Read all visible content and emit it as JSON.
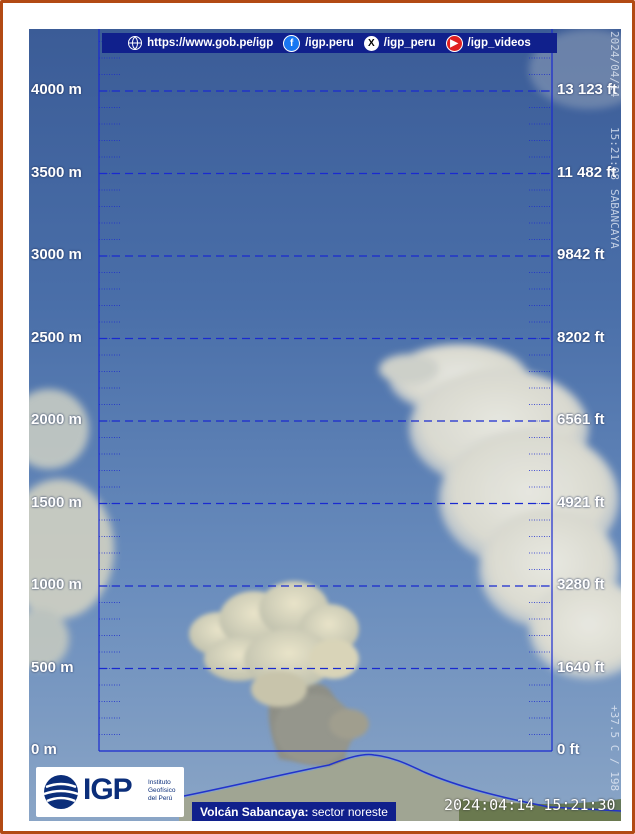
{
  "banner": {
    "website": "https://www.gob.pe/igp",
    "facebook": "/igp.peru",
    "x_handle": "/igp_peru",
    "youtube": "/igp_videos"
  },
  "scale": {
    "meters": [
      "0 m",
      "500 m",
      "1000 m",
      "1500 m",
      "2000 m",
      "2500 m",
      "3000 m",
      "3500 m",
      "4000 m"
    ],
    "feet": [
      "0 ft",
      "1640 ft",
      "3280 ft",
      "4921 ft",
      "6561 ft",
      "8202 ft",
      "9842 ft",
      "11 482 ft",
      "13 123 ft"
    ]
  },
  "overlay": {
    "vertical_date": "2024/04/14",
    "vertical_time": "15:21:08",
    "vertical_station": "SABANCAYA",
    "vertical_temp": "+37.5 C / 198",
    "timestamp": "2024:04:14 15:21:30"
  },
  "logo": {
    "text": "IGP",
    "sub1": "Instituto",
    "sub2": "Geofísico",
    "sub3": "del Perú"
  },
  "caption": {
    "volcano": "Volcán Sabancaya:",
    "sector": "sector noreste"
  },
  "colors": {
    "frame": "#b24a14",
    "banner": "#10208c",
    "scale_line": "#1a2ad0",
    "sky_top": "#3b5c97",
    "sky_bottom": "#8aa5c6"
  }
}
